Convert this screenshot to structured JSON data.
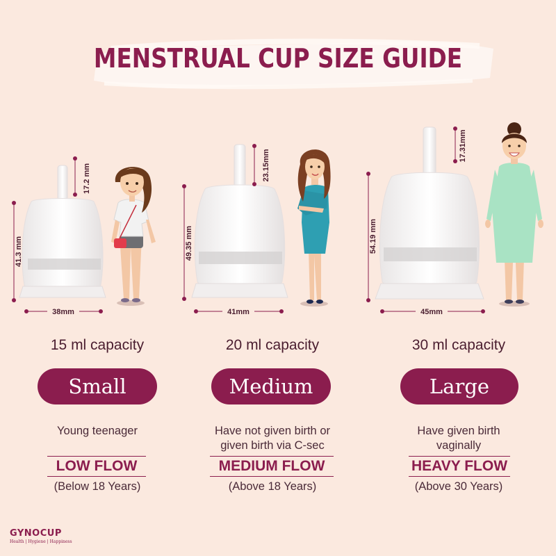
{
  "title": "MENSTRUAL CUP SIZE GUIDE",
  "colors": {
    "accent": "#8b1d4e",
    "background": "#fbe9df"
  },
  "sizes": [
    {
      "stem_length": "17.2 mm",
      "height": "41.3 mm",
      "diameter": "38mm",
      "capacity": "15 ml capacity",
      "size": "Small",
      "description": "Young teenager",
      "flow": "LOW FLOW",
      "age": "(Below 18 Years)"
    },
    {
      "stem_length": "23.15mm",
      "height": "49.35 mm",
      "diameter": "41mm",
      "capacity": "20 ml capacity",
      "size": "Medium",
      "description": "Have not given birth or given birth via C-sec",
      "flow": "MEDIUM FLOW",
      "age": "(Above 18 Years)"
    },
    {
      "stem_length": "17.31mm",
      "height": "54.19 mm",
      "diameter": "45mm",
      "capacity": "30 ml capacity",
      "size": "Large",
      "description": "Have given birth vaginally",
      "flow": "HEAVY FLOW",
      "age": "(Above 30 Years)"
    }
  ],
  "logo": {
    "name": "GYNOCUP",
    "tagline": "Health | Hygiene | Happiness"
  }
}
